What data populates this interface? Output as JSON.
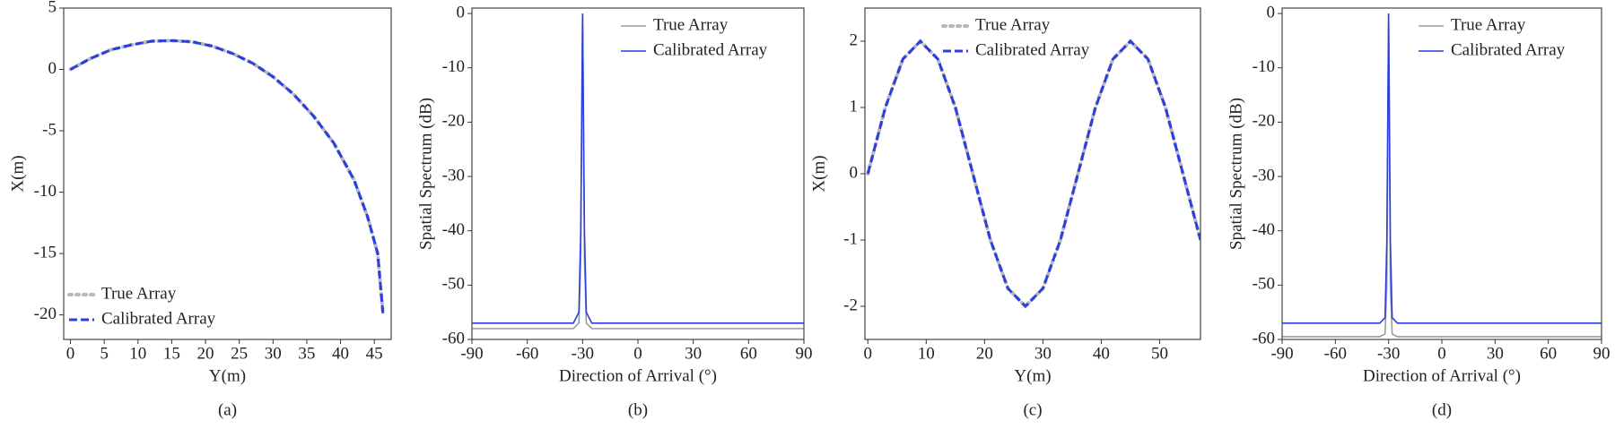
{
  "chart_data": [
    {
      "type": "line",
      "caption": "(a)",
      "x_label": "Y(m)",
      "y_label": "X(m)",
      "xlim": [
        -1,
        47.5
      ],
      "ylim": [
        -22,
        5
      ],
      "xticks": [
        0,
        5,
        10,
        15,
        20,
        25,
        30,
        35,
        40,
        45
      ],
      "yticks": [
        -20,
        -15,
        -10,
        -5,
        0,
        5
      ],
      "legend": "lower left",
      "x": [
        0,
        3,
        6,
        9,
        12,
        15,
        18,
        21,
        24,
        27,
        30,
        33,
        36,
        39,
        42,
        44,
        45.5,
        46.3
      ],
      "series": [
        {
          "name": "True Array",
          "color": "#b8b8b8",
          "linestyle": "dotted",
          "values": [
            0,
            0.9,
            1.6,
            2.0,
            2.3,
            2.35,
            2.25,
            1.9,
            1.3,
            0.5,
            -0.6,
            -2,
            -3.8,
            -6,
            -9,
            -12,
            -15,
            -20
          ]
        },
        {
          "name": "Calibrated Array",
          "color": "#2a3fe0",
          "linestyle": "dashed",
          "values": [
            0,
            0.9,
            1.6,
            2.0,
            2.3,
            2.35,
            2.25,
            1.9,
            1.3,
            0.5,
            -0.6,
            -2,
            -3.8,
            -6,
            -9,
            -12,
            -15,
            -20
          ]
        }
      ]
    },
    {
      "type": "line",
      "caption": "(b)",
      "x_label": "Direction of Arrival (°)",
      "y_label": "Spatial Spectrum (dB)",
      "xlim": [
        -90,
        90
      ],
      "ylim": [
        -60,
        1
      ],
      "xticks": [
        -90,
        -60,
        -30,
        0,
        30,
        60,
        90
      ],
      "yticks": [
        -60,
        -50,
        -40,
        -30,
        -20,
        -10,
        0
      ],
      "legend": "upper right",
      "x": [
        -90,
        -60,
        -35,
        -32,
        -31,
        -30,
        -29,
        -28,
        -25,
        0,
        30,
        60,
        90
      ],
      "series": [
        {
          "name": "True Array",
          "color": "#9a9a9a",
          "linestyle": "solid",
          "values": [
            -58,
            -58,
            -58,
            -57,
            -45,
            0,
            -45,
            -57,
            -58,
            -58,
            -58,
            -58,
            -58
          ]
        },
        {
          "name": "Calibrated Array",
          "color": "#2a3fe0",
          "linestyle": "solid",
          "values": [
            -57,
            -57,
            -57,
            -55,
            -40,
            0,
            -40,
            -55,
            -57,
            -57,
            -57,
            -57,
            -57
          ]
        }
      ]
    },
    {
      "type": "line",
      "caption": "(c)",
      "x_label": "Y(m)",
      "y_label": "X(m)",
      "xlim": [
        -0.5,
        57
      ],
      "ylim": [
        -2.5,
        2.5
      ],
      "xticks": [
        0,
        10,
        20,
        30,
        40,
        50
      ],
      "yticks": [
        -2,
        -1,
        0,
        1,
        2
      ],
      "legend": "upper center",
      "x": [
        0,
        3,
        6,
        9,
        12,
        15,
        18,
        21,
        24,
        27,
        30,
        33,
        36,
        39,
        42,
        45,
        48,
        51,
        54,
        57
      ],
      "series": [
        {
          "name": "True Array",
          "color": "#b8b8b8",
          "linestyle": "dotted",
          "values": [
            0,
            1,
            1.73,
            2,
            1.73,
            1,
            0,
            -1,
            -1.73,
            -2,
            -1.73,
            -1,
            0,
            1,
            1.73,
            2,
            1.73,
            1,
            0,
            -1
          ]
        },
        {
          "name": "Calibrated Array",
          "color": "#2a3fe0",
          "linestyle": "dashed",
          "values": [
            0,
            1,
            1.73,
            2,
            1.73,
            1,
            0,
            -1,
            -1.73,
            -2,
            -1.73,
            -1,
            0,
            1,
            1.73,
            2,
            1.73,
            1,
            0,
            -1
          ]
        }
      ]
    },
    {
      "type": "line",
      "caption": "(d)",
      "x_label": "Direction of Arrival (°)",
      "y_label": "Spatial Spectrum (dB)",
      "xlim": [
        -90,
        90
      ],
      "ylim": [
        -60,
        1
      ],
      "xticks": [
        -90,
        -60,
        -30,
        0,
        30,
        60,
        90
      ],
      "yticks": [
        -60,
        -50,
        -40,
        -30,
        -20,
        -10,
        0
      ],
      "legend": "upper right",
      "x": [
        -90,
        -60,
        -35,
        -32,
        -31,
        -30,
        -29,
        -28,
        -25,
        0,
        30,
        60,
        90
      ],
      "series": [
        {
          "name": "True Array",
          "color": "#9a9a9a",
          "linestyle": "solid",
          "values": [
            -59.5,
            -59.5,
            -59.5,
            -59,
            -50,
            0,
            -50,
            -59,
            -59.5,
            -59.5,
            -59.5,
            -59.5,
            -59.5
          ]
        },
        {
          "name": "Calibrated Array",
          "color": "#2a3fe0",
          "linestyle": "solid",
          "values": [
            -57,
            -57,
            -57,
            -56,
            -42,
            0,
            -42,
            -56,
            -57,
            -57,
            -57,
            -57,
            -57
          ]
        }
      ]
    }
  ]
}
